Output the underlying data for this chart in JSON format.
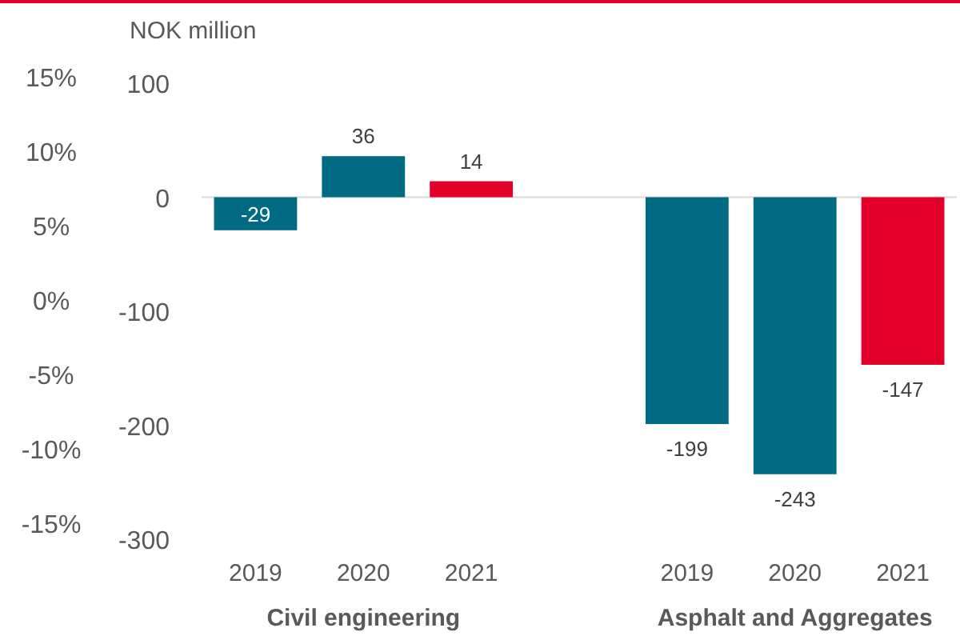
{
  "chart_data": {
    "type": "bar",
    "ylabel": "NOK million",
    "categories": [
      "2019",
      "2020",
      "2021",
      null,
      "2019",
      "2020",
      "2021"
    ],
    "values": [
      -29,
      36,
      14,
      null,
      -199,
      -243,
      -147
    ],
    "colors": [
      "#006b82",
      "#006b82",
      "#e2002b",
      null,
      "#006b82",
      "#006b82",
      "#e2002b"
    ],
    "data_labels": true,
    "ylim": [
      -300,
      100
    ],
    "yticks": [
      -300,
      -200,
      -100,
      0,
      100
    ],
    "y2lim": [
      -15,
      15
    ],
    "y2ticks": [
      {
        "value": -15,
        "label": "-15%"
      },
      {
        "value": -10,
        "label": "-10%"
      },
      {
        "value": -5,
        "label": "-5%"
      },
      {
        "value": 0,
        "label": "0%"
      },
      {
        "value": 5,
        "label": "5%"
      },
      {
        "value": 10,
        "label": "10%"
      },
      {
        "value": 15,
        "label": "15%"
      }
    ],
    "annotations": [
      "Civil engineering",
      "Asphalt and Aggregates"
    ]
  }
}
